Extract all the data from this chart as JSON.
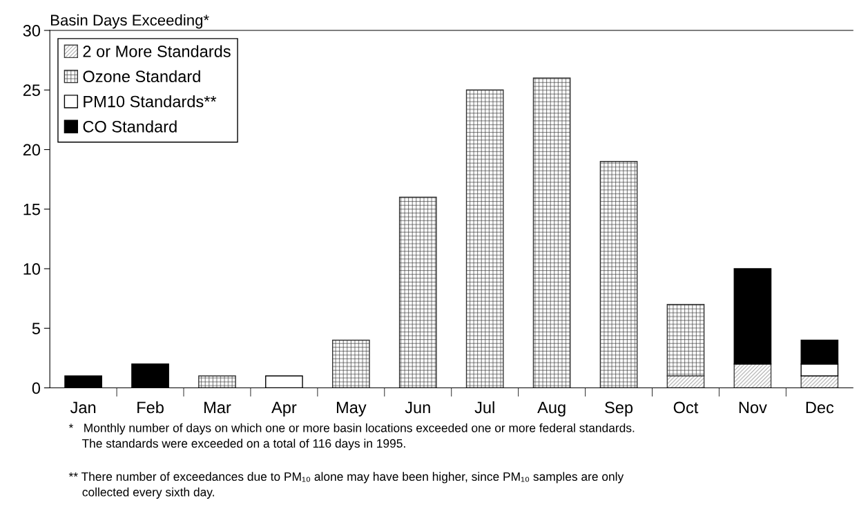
{
  "chart_data": {
    "type": "bar",
    "stacked": true,
    "ylabel": "Basin Days Exceeding*",
    "categories": [
      "Jan",
      "Feb",
      "Mar",
      "Apr",
      "May",
      "Jun",
      "Jul",
      "Aug",
      "Sep",
      "Oct",
      "Nov",
      "Dec"
    ],
    "series": [
      {
        "name": "2 or More Standards",
        "color": "#404040",
        "values": [
          0,
          0,
          0,
          0,
          0,
          0,
          0,
          0,
          0,
          1,
          2,
          1
        ]
      },
      {
        "name": "Ozone Standard",
        "color": "#333333",
        "values": [
          0,
          0,
          1,
          0,
          4,
          16,
          25,
          26,
          19,
          6,
          0,
          0
        ]
      },
      {
        "name": "PM10 Standards**",
        "color": "#ffffff",
        "values": [
          0,
          0,
          0,
          1,
          0,
          0,
          0,
          0,
          0,
          0,
          0,
          1
        ]
      },
      {
        "name": "CO Standard",
        "color": "#000000",
        "values": [
          1,
          2,
          0,
          0,
          0,
          0,
          0,
          0,
          0,
          0,
          8,
          2
        ]
      }
    ],
    "ylim": [
      0,
      30
    ],
    "yticks": [
      0,
      5,
      10,
      15,
      20,
      25,
      30
    ],
    "grid": false,
    "legend": "top left",
    "annotations": [
      "*   Monthly number of days on which one or more basin locations exceeded one or more federal standards.\n    The standards were exceeded on a total of 116 days in 1995.",
      "** There number of exceedances due to PM₁₀ alone may have been higher, since PM₁₀ samples are only\n    collected every sixth day."
    ]
  }
}
